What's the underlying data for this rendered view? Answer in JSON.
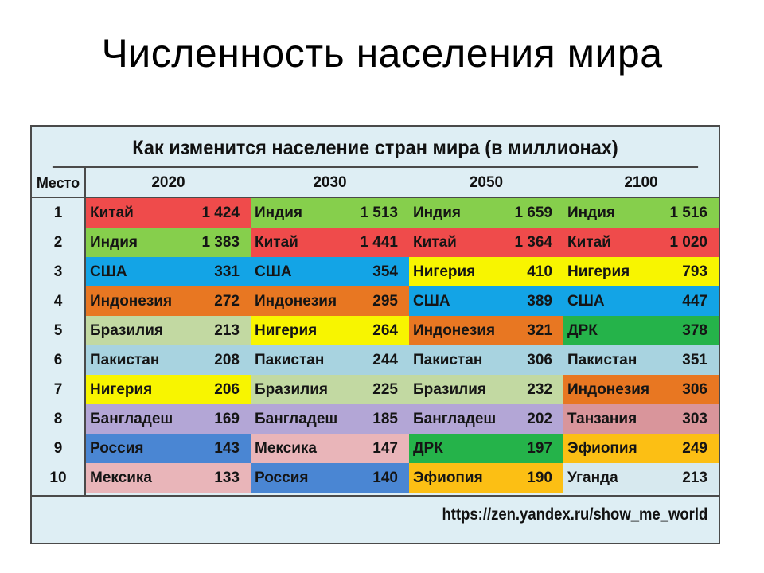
{
  "slide": {
    "title": "Численность населения мира"
  },
  "table": {
    "heading": "Как изменится население стран мира (в миллионах)",
    "place_header": "Место",
    "years": [
      "2020",
      "2030",
      "2050",
      "2100"
    ],
    "places": [
      "1",
      "2",
      "3",
      "4",
      "5",
      "6",
      "7",
      "8",
      "9",
      "10"
    ],
    "rows": [
      [
        {
          "name": "Китай",
          "value": "1 424",
          "color": "#ef4b4b"
        },
        {
          "name": "Индия",
          "value": "1 513",
          "color": "#86cf4c"
        },
        {
          "name": "Индия",
          "value": "1 659",
          "color": "#86cf4c"
        },
        {
          "name": "Индия",
          "value": "1 516",
          "color": "#86cf4c"
        }
      ],
      [
        {
          "name": "Индия",
          "value": "1 383",
          "color": "#86cf4c"
        },
        {
          "name": "Китай",
          "value": "1 441",
          "color": "#ef4b4b"
        },
        {
          "name": "Китай",
          "value": "1 364",
          "color": "#ef4b4b"
        },
        {
          "name": "Китай",
          "value": "1 020",
          "color": "#ef4b4b"
        }
      ],
      [
        {
          "name": "США",
          "value": "331",
          "color": "#13a4e6"
        },
        {
          "name": "США",
          "value": "354",
          "color": "#13a4e6"
        },
        {
          "name": "Нигерия",
          "value": "410",
          "color": "#f8f500"
        },
        {
          "name": "Нигерия",
          "value": "793",
          "color": "#f8f500"
        }
      ],
      [
        {
          "name": "Индонезия",
          "value": "272",
          "color": "#e87722"
        },
        {
          "name": "Индонезия",
          "value": "295",
          "color": "#e87722"
        },
        {
          "name": "США",
          "value": "389",
          "color": "#13a4e6"
        },
        {
          "name": "США",
          "value": "447",
          "color": "#13a4e6"
        }
      ],
      [
        {
          "name": "Бразилия",
          "value": "213",
          "color": "#c2d9a2"
        },
        {
          "name": "Нигерия",
          "value": "264",
          "color": "#f8f500"
        },
        {
          "name": "Индонезия",
          "value": "321",
          "color": "#e87722"
        },
        {
          "name": "ДРК",
          "value": "378",
          "color": "#25b34a"
        }
      ],
      [
        {
          "name": "Пакистан",
          "value": "208",
          "color": "#a8d3e0"
        },
        {
          "name": "Пакистан",
          "value": "244",
          "color": "#a8d3e0"
        },
        {
          "name": "Пакистан",
          "value": "306",
          "color": "#a8d3e0"
        },
        {
          "name": "Пакистан",
          "value": "351",
          "color": "#a8d3e0"
        }
      ],
      [
        {
          "name": "Нигерия",
          "value": "206",
          "color": "#f8f500"
        },
        {
          "name": "Бразилия",
          "value": "225",
          "color": "#c2d9a2"
        },
        {
          "name": "Бразилия",
          "value": "232",
          "color": "#c2d9a2"
        },
        {
          "name": "Индонезия",
          "value": "306",
          "color": "#e87722"
        }
      ],
      [
        {
          "name": "Бангладеш",
          "value": "169",
          "color": "#b3a6d6"
        },
        {
          "name": "Бангладеш",
          "value": "185",
          "color": "#b3a6d6"
        },
        {
          "name": "Бангладеш",
          "value": "202",
          "color": "#b3a6d6"
        },
        {
          "name": "Танзания",
          "value": "303",
          "color": "#d9959b"
        }
      ],
      [
        {
          "name": "Россия",
          "value": "143",
          "color": "#4a86d3"
        },
        {
          "name": "Мексика",
          "value": "147",
          "color": "#e9b5b9"
        },
        {
          "name": "ДРК",
          "value": "197",
          "color": "#25b34a"
        },
        {
          "name": "Эфиопия",
          "value": "249",
          "color": "#fcbf14"
        }
      ],
      [
        {
          "name": "Мексика",
          "value": "133",
          "color": "#e9b5b9"
        },
        {
          "name": "Россия",
          "value": "140",
          "color": "#4a86d3"
        },
        {
          "name": "Эфиопия",
          "value": "190",
          "color": "#fcbf14"
        },
        {
          "name": "Уганда",
          "value": "213",
          "color": "#d7e9ef"
        }
      ]
    ],
    "source": "https://zen.yandex.ru/show_me_world"
  }
}
